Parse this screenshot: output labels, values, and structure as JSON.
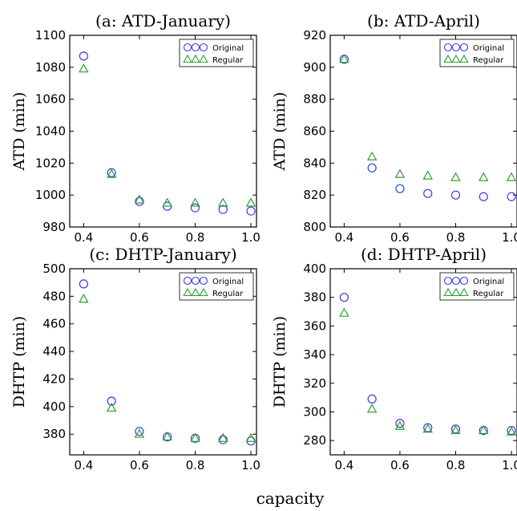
{
  "figure": {
    "xlabel": "capacity"
  },
  "chart_data": [
    {
      "type": "scatter",
      "title": "(a: ATD-January)",
      "ylabel": "ATD (min)",
      "x": [
        0.4,
        0.5,
        0.6,
        0.7,
        0.8,
        0.9,
        1.0
      ],
      "xlim": [
        0.35,
        1.02
      ],
      "ylim": [
        980,
        1100
      ],
      "xticks": [
        "0.4",
        "0.6",
        "0.8",
        "1.0"
      ],
      "yticks": [
        "980",
        "1000",
        "1020",
        "1040",
        "1060",
        "1080",
        "1100"
      ],
      "legend_position": "top-right",
      "series": [
        {
          "name": "Original",
          "marker": "circle",
          "color": "#3a3af0",
          "values": [
            1087,
            1014,
            996,
            993,
            992,
            991,
            990
          ]
        },
        {
          "name": "Regular",
          "marker": "triangle",
          "color": "#2ca02c",
          "values": [
            1079,
            1013,
            997,
            995,
            995,
            995,
            995
          ]
        }
      ]
    },
    {
      "type": "scatter",
      "title": "(b: ATD-April)",
      "ylabel": "ATD (min)",
      "x": [
        0.4,
        0.5,
        0.6,
        0.7,
        0.8,
        0.9,
        1.0
      ],
      "xlim": [
        0.35,
        1.02
      ],
      "ylim": [
        800,
        920
      ],
      "xticks": [
        "0.4",
        "0.6",
        "0.8",
        "1.0"
      ],
      "yticks": [
        "800",
        "820",
        "840",
        "860",
        "880",
        "900",
        "920"
      ],
      "legend_position": "top-right",
      "series": [
        {
          "name": "Original",
          "marker": "circle",
          "color": "#3a3af0",
          "values": [
            905,
            837,
            824,
            821,
            820,
            819,
            819
          ]
        },
        {
          "name": "Regular",
          "marker": "triangle",
          "color": "#2ca02c",
          "values": [
            905,
            844,
            833,
            832,
            831,
            831,
            831
          ]
        }
      ]
    },
    {
      "type": "scatter",
      "title": "(c: DHTP-January)",
      "ylabel": "DHTP (min)",
      "x": [
        0.4,
        0.5,
        0.6,
        0.7,
        0.8,
        0.9,
        1.0
      ],
      "xlim": [
        0.35,
        1.02
      ],
      "ylim": [
        365,
        500
      ],
      "xticks": [
        "0.4",
        "0.6",
        "0.8",
        "1.0"
      ],
      "yticks": [
        "380",
        "400",
        "420",
        "440",
        "460",
        "480",
        "500"
      ],
      "legend_position": "top-right",
      "series": [
        {
          "name": "Original",
          "marker": "circle",
          "color": "#3a3af0",
          "values": [
            489,
            404,
            382,
            378,
            377,
            376,
            375
          ]
        },
        {
          "name": "Regular",
          "marker": "triangle",
          "color": "#2ca02c",
          "values": [
            478,
            399,
            380,
            378,
            377,
            377,
            377
          ]
        }
      ]
    },
    {
      "type": "scatter",
      "title": "(d: DHTP-April)",
      "ylabel": "DHTP (min)",
      "x": [
        0.4,
        0.5,
        0.6,
        0.7,
        0.8,
        0.9,
        1.0
      ],
      "xlim": [
        0.35,
        1.02
      ],
      "ylim": [
        270,
        400
      ],
      "xticks": [
        "0.4",
        "0.6",
        "0.8",
        "1.0"
      ],
      "yticks": [
        "280",
        "300",
        "320",
        "340",
        "360",
        "380",
        "400"
      ],
      "legend_position": "top-right",
      "series": [
        {
          "name": "Original",
          "marker": "circle",
          "color": "#3a3af0",
          "values": [
            380,
            309,
            292,
            289,
            288,
            287,
            287
          ]
        },
        {
          "name": "Regular",
          "marker": "triangle",
          "color": "#2ca02c",
          "values": [
            369,
            302,
            290,
            288,
            287,
            287,
            286
          ]
        }
      ]
    }
  ]
}
